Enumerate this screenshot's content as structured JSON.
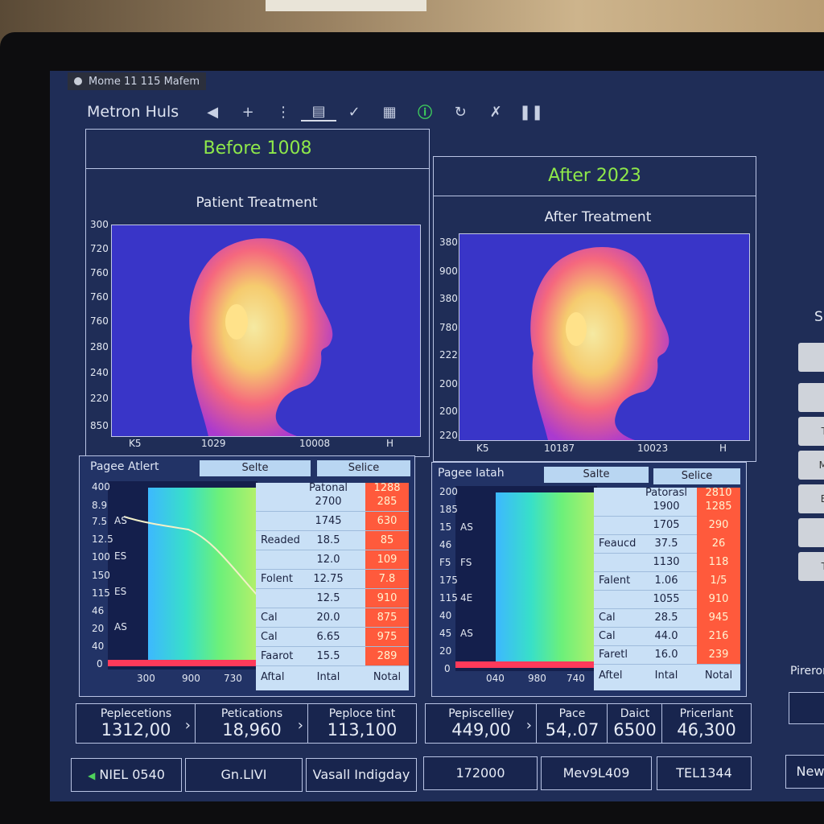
{
  "window": {
    "title": "Mome 11 115 Mafem"
  },
  "toolbar": {
    "app_title": "Metron Huls",
    "icons": [
      "back-icon",
      "plus-icon",
      "divider-icon",
      "save-icon",
      "check-icon",
      "clipboard-icon",
      "alert-icon",
      "refresh-icon",
      "shuffle-icon",
      "pause-icon"
    ]
  },
  "colors": {
    "accent_green": "#8ee84a",
    "thermal_bg": "#3935c8",
    "hot": "#ff5a3c"
  },
  "left": {
    "header": "Before 1008",
    "title": "Patient Treatment",
    "y_ticks": [
      "300",
      "720",
      "760",
      "760",
      "760",
      "280",
      "240",
      "220",
      "850"
    ],
    "x_ticks": [
      "K5",
      "1029",
      "10008",
      "H"
    ],
    "chart": {
      "title": "Pagee Atlert",
      "tab1": "Selte",
      "tab2": "Selice",
      "y_ticks": [
        "400",
        "8.9",
        "7.5",
        "12.5",
        "100",
        "150",
        "115",
        "46",
        "20",
        "40",
        "0"
      ],
      "inner_ticks": [
        "AS",
        "ES",
        "ES",
        "AS"
      ],
      "x_ticks": [
        "300",
        "900",
        "730"
      ],
      "table": {
        "header": "Patonal",
        "rows": [
          {
            "c1": "",
            "c2": "2700",
            "c3": "1288"
          },
          {
            "c1": "",
            "c2": "1745",
            "c3": "285"
          },
          {
            "c1": "Readed",
            "c2": "18.5",
            "c3": "630"
          },
          {
            "c1": "",
            "c2": "12.0",
            "c3": "85"
          },
          {
            "c1": "Folent",
            "c2": "12.75",
            "c3": "109"
          },
          {
            "c1": "",
            "c2": "12.5",
            "c3": "7.8"
          },
          {
            "c1": "Cal",
            "c2": "20.0",
            "c3": "910"
          },
          {
            "c1": "Cal",
            "c2": "6.65",
            "c3": "875"
          },
          {
            "c1": "Faarot",
            "c2": "15.5",
            "c3": "975"
          }
        ],
        "last_c3": "289",
        "footer": [
          "Aftal",
          "Intal",
          "Notal"
        ]
      }
    },
    "stats": [
      {
        "label": "Peplecetions",
        "value": "1312,00"
      },
      {
        "label": "Petications",
        "value": "18,960"
      },
      {
        "label": "Peploce tint",
        "value": "113,100"
      }
    ]
  },
  "right": {
    "header": "After 2023",
    "title": "After Treatment",
    "y_ticks": [
      "380",
      "900",
      "380",
      "780",
      "222",
      "200",
      "200",
      "220"
    ],
    "x_ticks": [
      "K5",
      "10187",
      "10023",
      "H"
    ],
    "chart": {
      "title": "Pagee Iatah",
      "tab1": "Salte",
      "tab2": "Selice",
      "y_ticks": [
        "200",
        "185",
        "15",
        "46",
        "F5",
        "175",
        "115",
        "40",
        "45",
        "20",
        "0"
      ],
      "inner_ticks": [
        "AS",
        "FS",
        "4E",
        "AS"
      ],
      "x_ticks": [
        "040",
        "980",
        "740"
      ],
      "table": {
        "header": "Patorasl",
        "rows": [
          {
            "c1": "",
            "c2": "1900",
            "c3": "2810"
          },
          {
            "c1": "",
            "c2": "1705",
            "c3": "1285"
          },
          {
            "c1": "Feaucd",
            "c2": "37.5",
            "c3": "290"
          },
          {
            "c1": "",
            "c2": "1130",
            "c3": "26"
          },
          {
            "c1": "Falent",
            "c2": "1.06",
            "c3": "118"
          },
          {
            "c1": "",
            "c2": "1055",
            "c3": "1/5"
          },
          {
            "c1": "Cal",
            "c2": "28.5",
            "c3": "910"
          },
          {
            "c1": "Cal",
            "c2": "44.0",
            "c3": "945"
          },
          {
            "c1": "Faretl",
            "c2": "16.0",
            "c3": "216"
          }
        ],
        "last_c3": "239",
        "footer": [
          "Aftel",
          "Intal",
          "Notal"
        ]
      }
    },
    "stats": [
      {
        "label": "Pepiscelliey",
        "value": "449,00"
      },
      {
        "label": "Pace",
        "value": "54,.07"
      },
      {
        "label": "Daict",
        "value": "6500"
      },
      {
        "label": "Pricerlant",
        "value": "46,300"
      }
    ]
  },
  "bottom_buttons": [
    "NIEL 0540",
    "Gn.LIVI",
    "Vasall Indigday",
    "172000",
    "Mev9L409",
    "TEL1344"
  ],
  "side": {
    "label_s": "S",
    "pirero": "Pireror",
    "new": "New",
    "btn_labels": [
      "",
      "",
      "T",
      "M",
      "B",
      "",
      "T"
    ]
  }
}
